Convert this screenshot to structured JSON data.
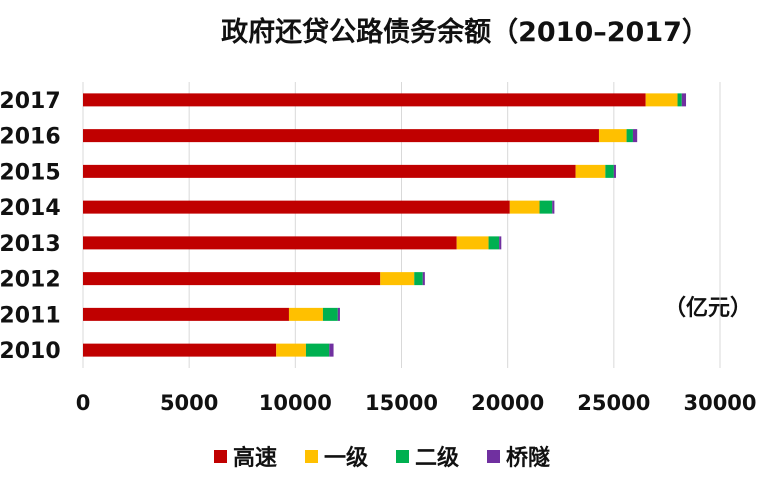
{
  "chart_data": {
    "type": "bar",
    "orientation": "horizontal",
    "stacked": true,
    "title": "政府还贷公路债务余额（2010–2017）",
    "unit_label": "（亿元）",
    "categories": [
      "2017",
      "2016",
      "2015",
      "2014",
      "2013",
      "2012",
      "2011",
      "2010"
    ],
    "series": [
      {
        "name": "高速",
        "color": "#c00000",
        "values": [
          26500,
          24300,
          23200,
          20100,
          17600,
          14000,
          9700,
          9100
        ]
      },
      {
        "name": "一级",
        "color": "#ffc000",
        "values": [
          1500,
          1300,
          1400,
          1400,
          1500,
          1600,
          1600,
          1400
        ]
      },
      {
        "name": "二级",
        "color": "#00b050",
        "values": [
          200,
          300,
          400,
          600,
          500,
          400,
          700,
          1100
        ]
      },
      {
        "name": "桥隧",
        "color": "#7030a0",
        "values": [
          200,
          200,
          100,
          100,
          100,
          100,
          100,
          200
        ]
      }
    ],
    "x_ticks": [
      0,
      5000,
      10000,
      15000,
      20000,
      25000,
      30000
    ],
    "x_tick_labels": [
      "0",
      "5000",
      "10000",
      "15000",
      "20000",
      "25000",
      "30000"
    ],
    "xlim": [
      0,
      30000
    ],
    "grid": "vertical",
    "legend_position": "bottom"
  }
}
